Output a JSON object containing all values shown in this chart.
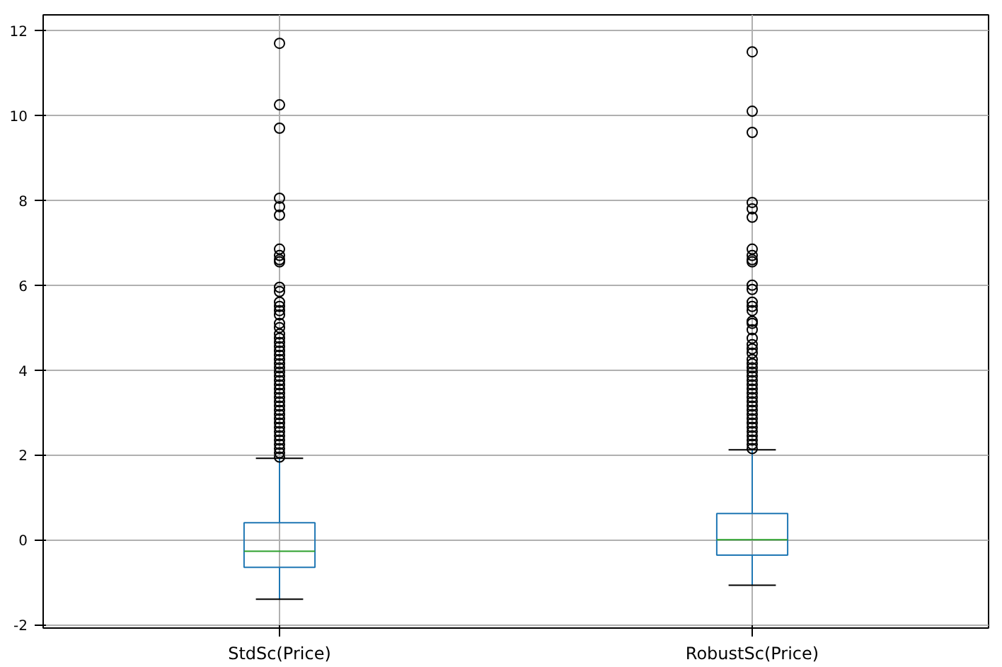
{
  "chart_data": {
    "type": "box",
    "categories": [
      "StdSc(Price)",
      "RobustSc(Price)"
    ],
    "color": "#1f77b4",
    "grid": true,
    "marker": "circle",
    "ylim": [
      -2.08,
      12.37
    ],
    "yticks": [
      -2,
      0,
      2,
      4,
      6,
      8,
      10,
      12
    ],
    "boxes": [
      {
        "low": -1.4,
        "q1": -0.65,
        "median": -0.27,
        "q3": 0.4,
        "high": 1.92,
        "outliers": [
          1.95,
          2.05,
          2.15,
          2.25,
          2.35,
          2.45,
          2.55,
          2.65,
          2.75,
          2.85,
          2.95,
          3.05,
          3.15,
          3.25,
          3.35,
          3.45,
          3.55,
          3.65,
          3.75,
          3.85,
          3.95,
          4.05,
          4.15,
          4.25,
          4.35,
          4.45,
          4.55,
          4.65,
          4.75,
          4.85,
          5.0,
          5.1,
          5.3,
          5.4,
          5.5,
          5.6,
          5.85,
          5.95,
          6.55,
          6.6,
          6.7,
          6.85,
          7.65,
          7.85,
          8.05,
          9.7,
          10.25,
          11.7
        ]
      },
      {
        "low": -1.07,
        "q1": -0.36,
        "median": 0.0,
        "q3": 0.62,
        "high": 2.12,
        "outliers": [
          2.15,
          2.25,
          2.35,
          2.45,
          2.55,
          2.65,
          2.75,
          2.85,
          2.95,
          3.05,
          3.15,
          3.25,
          3.35,
          3.45,
          3.55,
          3.65,
          3.75,
          3.85,
          3.95,
          4.05,
          4.15,
          4.25,
          4.4,
          4.5,
          4.6,
          4.75,
          4.95,
          5.1,
          5.15,
          5.4,
          5.5,
          5.6,
          5.9,
          6.0,
          6.55,
          6.6,
          6.7,
          6.85,
          7.6,
          7.8,
          7.95,
          9.6,
          10.1,
          11.5
        ]
      }
    ]
  }
}
